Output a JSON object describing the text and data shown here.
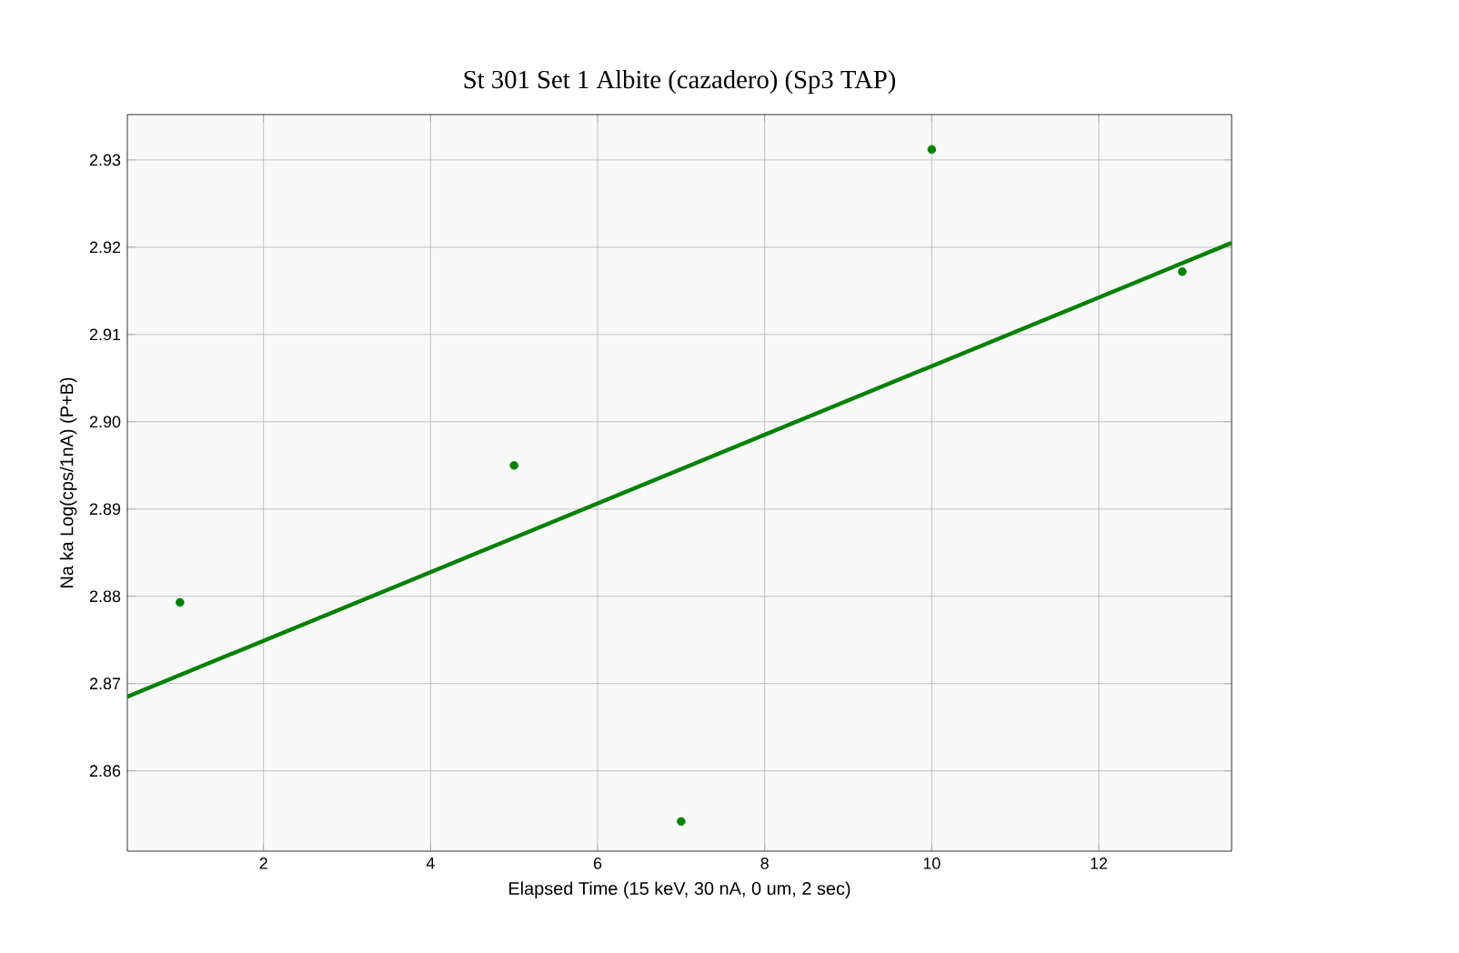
{
  "chart_data": {
    "type": "scatter",
    "title": "St  301 Set   1 Albite (cazadero) (Sp3 TAP)",
    "xlabel": "Elapsed Time (15 keV, 30 nA, 0 um, 2 sec)",
    "ylabel": "Na ka Log(cps/1nA) (P+B)",
    "series": [
      {
        "color": "#008000",
        "marker": "circle",
        "x": [
          1,
          5,
          7,
          10,
          13
        ],
        "values": [
          2.8793,
          2.895,
          2.8542,
          2.9312,
          2.9172
        ]
      },
      {
        "type": "line",
        "color": "#008000",
        "marker": "none",
        "x": [
          0.37,
          13.59
        ],
        "values": [
          2.8685,
          2.9205
        ]
      }
    ],
    "xlim": [
      0.37,
      13.59
    ],
    "ylim": [
      2.8508,
      2.9352
    ],
    "xticks": [
      2,
      4,
      6,
      8,
      10,
      12
    ],
    "yticks": [
      2.86,
      2.87,
      2.88,
      2.89,
      {
        "value": 2.9,
        "label": "2.90"
      },
      2.91,
      2.92,
      2.93
    ],
    "grid": true
  }
}
